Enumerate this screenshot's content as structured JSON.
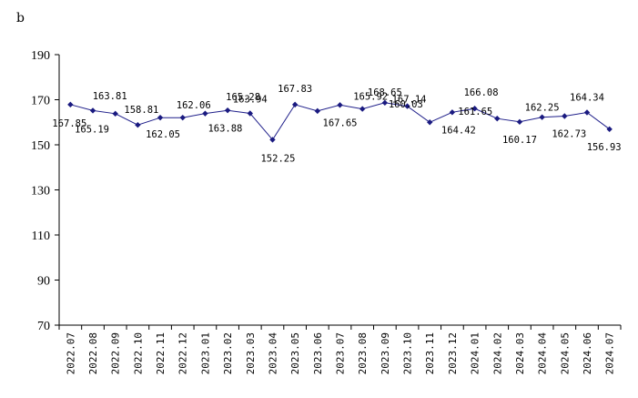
{
  "panel_label": "b",
  "chart_data": {
    "type": "line",
    "title": "",
    "xlabel": "",
    "ylabel": "",
    "ylim": [
      70,
      190
    ],
    "yticks": [
      70,
      90,
      110,
      130,
      150,
      170,
      190
    ],
    "grid": false,
    "x": [
      "2022.07",
      "2022.08",
      "2022.09",
      "2022.10",
      "2022.11",
      "2022.12",
      "2023.01",
      "2023.02",
      "2023.03",
      "2023.04",
      "2023.05",
      "2023.06",
      "2023.07",
      "2023.08",
      "2023.09",
      "2023.10",
      "2023.11",
      "2023.12",
      "2024.01",
      "2024.02",
      "2024.03",
      "2024.04",
      "2024.05",
      "2024.06",
      "2024.07"
    ],
    "series": [
      {
        "color": "#1a1a80",
        "values": [
          167.85,
          165.19,
          163.81,
          158.81,
          162.05,
          162.06,
          163.88,
          165.28,
          163.94,
          152.25,
          167.83,
          165.0,
          167.65,
          165.92,
          168.65,
          167.14,
          160.0,
          164.42,
          166.08,
          161.65,
          160.17,
          162.25,
          162.73,
          164.34,
          156.93
        ],
        "labels": [
          "167.85",
          "165.19",
          "163.81",
          "158.81",
          "162.05",
          "162.06",
          "163.88",
          "165.28",
          "163.94",
          "152.25",
          "167.83",
          "",
          "167.65",
          "165.92",
          "168.65",
          "167.14",
          "",
          "164.42",
          "166.08",
          "161.65",
          "160.17",
          "162.25",
          "162.73",
          "164.34",
          "156.93"
        ],
        "extra_labels": [
          "160.03"
        ]
      }
    ]
  }
}
